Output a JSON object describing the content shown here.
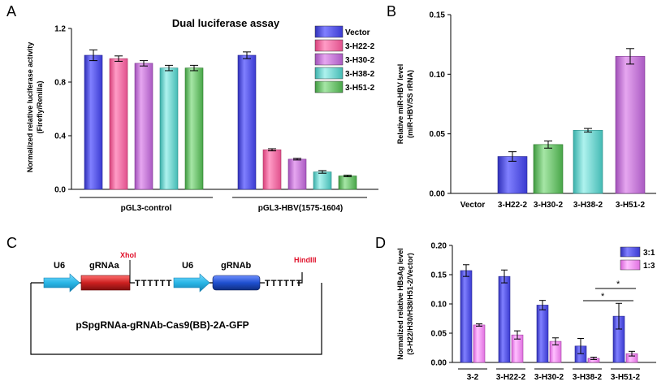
{
  "panels": {
    "A": "A",
    "B": "B",
    "C": "C",
    "D": "D"
  },
  "colors": {
    "vector": "#5a5ae6",
    "h22": "#f06fa6",
    "h30": "#c77ad6",
    "h38": "#6cd8d2",
    "h51": "#6fc26c",
    "s31": "#5a5ae6",
    "s13": "#f08ef0",
    "u6": "#29b6e6",
    "gRNAa": "#cc2020",
    "gRNAb": "#1f4fcf",
    "site": "#e0102a"
  },
  "chart_data": [
    {
      "type": "bar",
      "title": "Dual luciferase assay",
      "ylabel": "Normalized relative luciferase activity (Firefly/Renilla)",
      "ylabel_lines": [
        "Normalized relative luciferase activity",
        "(Firefly/Renilla)"
      ],
      "ylim": [
        0,
        1.2
      ],
      "yticks": [
        "0.0",
        "0.4",
        "0.8",
        "1.2"
      ],
      "groups": [
        "pGL3-control",
        "pGL3-HBV(1575-1604)"
      ],
      "series": [
        {
          "name": "Vector",
          "values": [
            1.0,
            1.0
          ],
          "errors": [
            0.04,
            0.025
          ]
        },
        {
          "name": "3-H22-2",
          "values": [
            0.975,
            0.295
          ],
          "errors": [
            0.02,
            0.008
          ]
        },
        {
          "name": "3-H30-2",
          "values": [
            0.94,
            0.225
          ],
          "errors": [
            0.02,
            0.006
          ]
        },
        {
          "name": "3-H38-2",
          "values": [
            0.905,
            0.13
          ],
          "errors": [
            0.02,
            0.01
          ]
        },
        {
          "name": "3-H51-2",
          "values": [
            0.905,
            0.1
          ],
          "errors": [
            0.02,
            0.006
          ]
        }
      ],
      "legend": [
        "Vector",
        "3-H22-2",
        "3-H30-2",
        "3-H38-2",
        "3-H51-2"
      ]
    },
    {
      "type": "bar",
      "ylabel": "Relative miR-HBV level (miR-HBV/5S rRNA)",
      "ylabel_lines": [
        "Relative miR-HBV level",
        "(miR-HBV/5S rRNA)"
      ],
      "ylim": [
        0,
        0.15
      ],
      "yticks": [
        "0.00",
        "0.05",
        "0.10",
        "0.15"
      ],
      "categories": [
        "Vector",
        "3-H22-2",
        "3-H30-2",
        "3-H38-2",
        "3-H51-2"
      ],
      "values": [
        0,
        0.031,
        0.041,
        0.053,
        0.115
      ],
      "errors": [
        0,
        0.004,
        0.003,
        0.0015,
        0.0065
      ]
    },
    {
      "type": "bar",
      "ylabel": "Normalized relative HBsAg level (3-H22/H30/H38/H51-2/Vector)",
      "ylabel_lines": [
        "Normalized relative HBsAg level",
        "(3-H22/H30/H38/H51-2/Vector)"
      ],
      "ylim": [
        0,
        0.2
      ],
      "yticks": [
        "0.00",
        "0.05",
        "0.10",
        "0.15",
        "0.20"
      ],
      "categories": [
        "3-2",
        "3-H22-2",
        "3-H30-2",
        "3-H38-2",
        "3-H51-2"
      ],
      "series": [
        {
          "name": "3:1",
          "values": [
            0.157,
            0.147,
            0.098,
            0.028,
            0.079
          ],
          "errors": [
            0.01,
            0.011,
            0.008,
            0.013,
            0.022
          ]
        },
        {
          "name": "1:3",
          "values": [
            0.064,
            0.047,
            0.036,
            0.007,
            0.015
          ],
          "errors": [
            0.002,
            0.007,
            0.006,
            0.002,
            0.004
          ]
        }
      ],
      "annotations": [
        "*",
        "*"
      ]
    }
  ],
  "diagram": {
    "u6_1": "U6",
    "gRNAa": "gRNAa",
    "xhoi": "XhoI",
    "u6_2": "U6",
    "gRNAb": "gRNAb",
    "hindiii": "HindIII",
    "terminator": "TTTTTT",
    "plasmid": "pSpgRNAa-gRNAb-Cas9(BB)-2A-GFP"
  }
}
